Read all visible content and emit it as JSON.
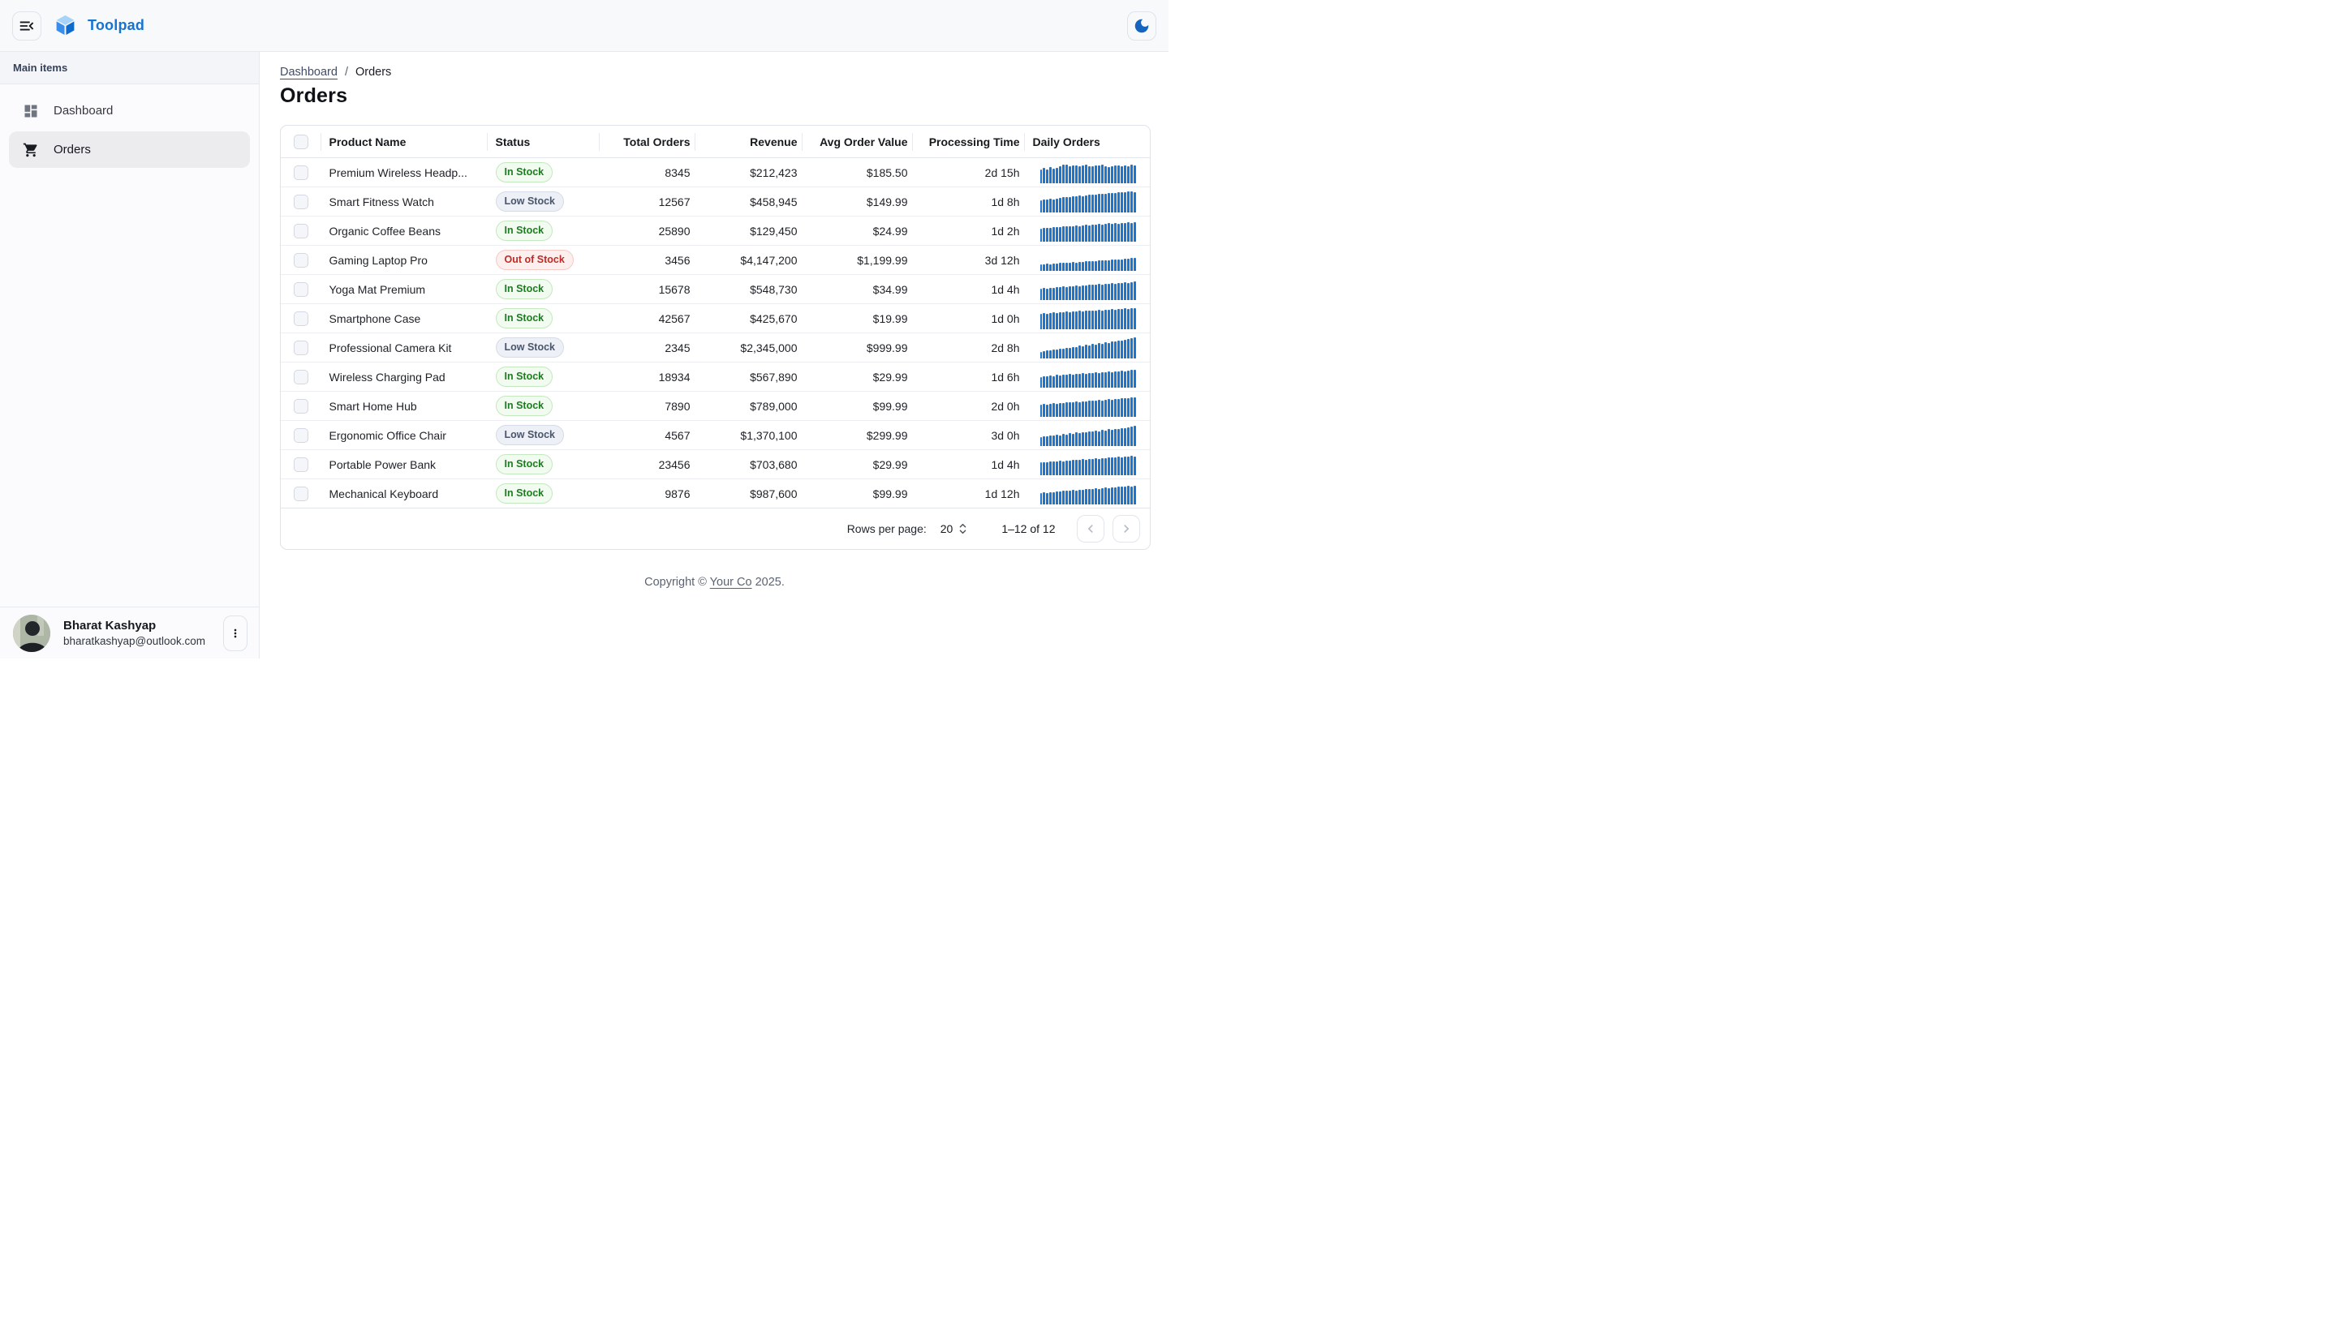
{
  "app": {
    "brand": "Toolpad"
  },
  "sidebar": {
    "section_label": "Main items",
    "items": [
      {
        "label": "Dashboard",
        "icon": "dashboard-icon",
        "selected": false
      },
      {
        "label": "Orders",
        "icon": "cart-icon",
        "selected": true
      }
    ],
    "user": {
      "name": "Bharat Kashyap",
      "email": "bharatkashyap@outlook.com"
    }
  },
  "breadcrumb": {
    "link": "Dashboard",
    "separator": "/",
    "current": "Orders"
  },
  "page": {
    "title": "Orders"
  },
  "table": {
    "columns": [
      {
        "label": "",
        "type": "checkbox"
      },
      {
        "label": "Product Name",
        "align": "left"
      },
      {
        "label": "Status",
        "align": "left"
      },
      {
        "label": "Total Orders",
        "align": "right"
      },
      {
        "label": "Revenue",
        "align": "right"
      },
      {
        "label": "Avg Order Value",
        "align": "right"
      },
      {
        "label": "Processing Time",
        "align": "right"
      },
      {
        "label": "Daily Orders",
        "align": "left"
      }
    ],
    "rows": [
      {
        "product": "Premium Wireless Headp...",
        "status": "In Stock",
        "variant": "in",
        "total_orders": "8345",
        "revenue": "$212,423",
        "avg_order_value": "$185.50",
        "processing_time": "2d 15h",
        "daily_orders": [
          62,
          70,
          65,
          75,
          68,
          72,
          78,
          88,
          85,
          80,
          84,
          82,
          80,
          83,
          86,
          80,
          78,
          82,
          84,
          88,
          80,
          76,
          80,
          82,
          84,
          80,
          83,
          78,
          86,
          82
        ]
      },
      {
        "product": "Smart Fitness Watch",
        "status": "Low Stock",
        "variant": "low",
        "total_orders": "12567",
        "revenue": "$458,945",
        "avg_order_value": "$149.99",
        "processing_time": "1d 8h",
        "daily_orders": [
          55,
          58,
          60,
          62,
          60,
          65,
          68,
          70,
          72,
          70,
          74,
          76,
          78,
          76,
          80,
          82,
          84,
          82,
          86,
          88,
          86,
          90,
          92,
          90,
          94,
          96,
          94,
          98,
          100,
          96
        ]
      },
      {
        "product": "Organic Coffee Beans",
        "status": "In Stock",
        "variant": "in",
        "total_orders": "25890",
        "revenue": "$129,450",
        "avg_order_value": "$24.99",
        "processing_time": "1d 2h",
        "daily_orders": [
          60,
          62,
          65,
          63,
          66,
          68,
          66,
          70,
          72,
          70,
          73,
          75,
          73,
          76,
          78,
          76,
          80,
          78,
          82,
          80,
          83,
          85,
          83,
          86,
          84,
          88,
          86,
          90,
          88,
          92
        ]
      },
      {
        "product": "Gaming Laptop Pro",
        "status": "Out of Stock",
        "variant": "out",
        "total_orders": "3456",
        "revenue": "$4,147,200",
        "avg_order_value": "$1,199.99",
        "processing_time": "3d 12h",
        "daily_orders": [
          28,
          30,
          32,
          30,
          34,
          33,
          36,
          35,
          38,
          37,
          40,
          38,
          42,
          41,
          44,
          43,
          46,
          45,
          48,
          47,
          50,
          49,
          52,
          51,
          54,
          53,
          56,
          55,
          58,
          60
        ]
      },
      {
        "product": "Yoga Mat Premium",
        "status": "In Stock",
        "variant": "in",
        "total_orders": "15678",
        "revenue": "$548,730",
        "avg_order_value": "$34.99",
        "processing_time": "1d 4h",
        "daily_orders": [
          52,
          55,
          53,
          57,
          56,
          60,
          58,
          62,
          61,
          64,
          62,
          66,
          64,
          68,
          66,
          70,
          72,
          70,
          74,
          72,
          76,
          74,
          78,
          76,
          80,
          78,
          82,
          80,
          84,
          86
        ]
      },
      {
        "product": "Smartphone Case",
        "status": "In Stock",
        "variant": "in",
        "total_orders": "42567",
        "revenue": "$425,670",
        "avg_order_value": "$19.99",
        "processing_time": "1d 0h",
        "daily_orders": [
          72,
          75,
          73,
          76,
          78,
          76,
          80,
          78,
          82,
          80,
          83,
          82,
          85,
          84,
          86,
          85,
          88,
          86,
          90,
          88,
          92,
          90,
          94,
          92,
          96,
          94,
          98,
          96,
          100,
          98
        ]
      },
      {
        "product": "Professional Camera Kit",
        "status": "Low Stock",
        "variant": "low",
        "total_orders": "2345",
        "revenue": "$2,345,000",
        "avg_order_value": "$999.99",
        "processing_time": "2d 8h",
        "daily_orders": [
          30,
          34,
          38,
          36,
          42,
          40,
          46,
          44,
          50,
          48,
          54,
          52,
          58,
          56,
          62,
          60,
          66,
          64,
          70,
          68,
          74,
          72,
          78,
          80,
          84,
          82,
          88,
          92,
          96,
          100
        ]
      },
      {
        "product": "Wireless Charging Pad",
        "status": "In Stock",
        "variant": "in",
        "total_orders": "18934",
        "revenue": "$567,890",
        "avg_order_value": "$29.99",
        "processing_time": "1d 6h",
        "daily_orders": [
          50,
          53,
          51,
          55,
          54,
          58,
          56,
          60,
          59,
          62,
          60,
          64,
          62,
          66,
          64,
          68,
          66,
          70,
          68,
          72,
          70,
          74,
          72,
          76,
          74,
          78,
          76,
          80,
          82,
          84
        ]
      },
      {
        "product": "Smart Home Hub",
        "status": "In Stock",
        "variant": "in",
        "total_orders": "7890",
        "revenue": "$789,000",
        "avg_order_value": "$99.99",
        "processing_time": "2d 0h",
        "daily_orders": [
          55,
          58,
          56,
          60,
          62,
          60,
          64,
          62,
          66,
          68,
          66,
          70,
          68,
          72,
          70,
          74,
          76,
          74,
          78,
          76,
          80,
          82,
          80,
          84,
          82,
          86,
          88,
          86,
          90,
          92
        ]
      },
      {
        "product": "Ergonomic Office Chair",
        "status": "Low Stock",
        "variant": "low",
        "total_orders": "4567",
        "revenue": "$1,370,100",
        "avg_order_value": "$299.99",
        "processing_time": "3d 0h",
        "daily_orders": [
          42,
          46,
          44,
          50,
          48,
          52,
          50,
          56,
          54,
          58,
          56,
          62,
          60,
          64,
          62,
          68,
          66,
          70,
          68,
          74,
          72,
          78,
          76,
          80,
          78,
          84,
          82,
          88,
          92,
          96
        ]
      },
      {
        "product": "Portable Power Bank",
        "status": "In Stock",
        "variant": "in",
        "total_orders": "23456",
        "revenue": "$703,680",
        "avg_order_value": "$29.99",
        "processing_time": "1d 4h",
        "daily_orders": [
          58,
          60,
          58,
          62,
          64,
          62,
          66,
          64,
          68,
          66,
          70,
          72,
          70,
          74,
          72,
          76,
          74,
          78,
          76,
          80,
          78,
          82,
          84,
          82,
          86,
          84,
          88,
          86,
          90,
          88
        ]
      },
      {
        "product": "Mechanical Keyboard",
        "status": "In Stock",
        "variant": "in",
        "total_orders": "9876",
        "revenue": "$987,600",
        "avg_order_value": "$99.99",
        "processing_time": "1d 12h",
        "daily_orders": [
          52,
          55,
          53,
          57,
          56,
          60,
          58,
          62,
          64,
          62,
          66,
          64,
          68,
          66,
          70,
          72,
          70,
          74,
          72,
          76,
          78,
          76,
          80,
          78,
          82,
          84,
          82,
          86,
          84,
          88
        ]
      }
    ]
  },
  "pagination": {
    "rows_per_page_label": "Rows per page:",
    "rows_per_page_value": "20",
    "range": "1–12 of 12"
  },
  "footer": {
    "prefix": "Copyright © ",
    "link": "Your Co",
    "suffix": " 2025."
  },
  "colors": {
    "accent_blue": "#1976d2",
    "logo_blue": "#1673d1",
    "moon_blue": "#1565c0",
    "spark": "#1976d2",
    "in_text": "#1b7e1f",
    "in_bg": "#f2fbf0",
    "in_border": "#c4e8c0",
    "low_text": "#49566b",
    "low_bg": "#edf0f6",
    "low_border": "#d6dbe4",
    "out_text": "#c22a24",
    "out_bg": "#fdefee",
    "out_border": "#f5c9c6"
  }
}
